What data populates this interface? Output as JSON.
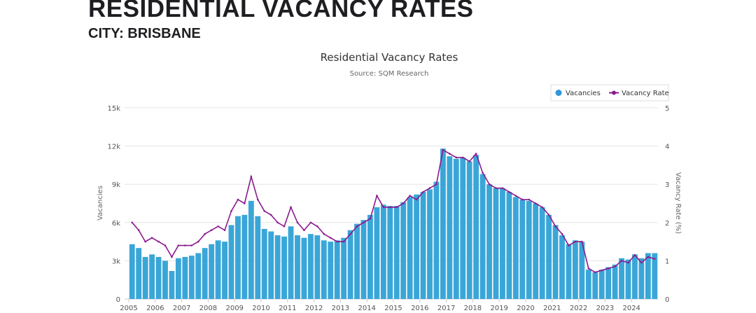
{
  "header": {
    "title": "RESIDENTIAL VACANCY RATES",
    "subtitle": "CITY: BRISBANE"
  },
  "chart_data": {
    "type": "bar+line",
    "title": "Residential Vacancy Rates",
    "subtitle": "Source: SQM Research",
    "xlabel": "",
    "ylabel_left": "Vacancies",
    "ylabel_right": "Vacancy Rate (%)",
    "ylim_left": [
      0,
      15000
    ],
    "ylim_right": [
      0,
      5
    ],
    "yticks_left": [
      "0",
      "3k",
      "6k",
      "9k",
      "12k",
      "15k"
    ],
    "yticks_right": [
      "0",
      "1",
      "2",
      "3",
      "4",
      "5"
    ],
    "xticks": [
      "2005",
      "2006",
      "2007",
      "2008",
      "2009",
      "2010",
      "2011",
      "2012",
      "2013",
      "2014",
      "2015",
      "2016",
      "2017",
      "2018",
      "2019",
      "2020",
      "2021",
      "2022",
      "2023",
      "2024"
    ],
    "grid": true,
    "legend_position": "top-right",
    "colors": {
      "Vacancies": "#3aa6d8",
      "Vacancy Rate": "#8b1a8f"
    },
    "x_start_year": 2005,
    "x_step": "quarter",
    "series": [
      {
        "name": "Vacancies",
        "type": "bar",
        "axis": "left",
        "values": [
          4300,
          4000,
          3300,
          3500,
          3300,
          3000,
          2200,
          3200,
          3300,
          3400,
          3600,
          4000,
          4300,
          4600,
          4500,
          5800,
          6500,
          6600,
          7700,
          6500,
          5500,
          5300,
          5000,
          4900,
          5700,
          5000,
          4800,
          5100,
          5000,
          4600,
          4500,
          4600,
          4800,
          5400,
          5900,
          6200,
          6600,
          7200,
          7400,
          7300,
          7300,
          7600,
          8000,
          8200,
          8400,
          8600,
          9200,
          11800,
          11200,
          11000,
          11100,
          10800,
          11300,
          9800,
          9000,
          8700,
          8700,
          8400,
          8000,
          7800,
          7700,
          7500,
          7200,
          6600,
          5800,
          5000,
          4300,
          4600,
          4500,
          2300,
          2100,
          2300,
          2500,
          2700,
          3200,
          3100,
          3500,
          3200,
          3600,
          3600
        ]
      },
      {
        "name": "Vacancy Rate",
        "type": "line",
        "axis": "right",
        "values": [
          2.0,
          1.8,
          1.5,
          1.6,
          1.5,
          1.4,
          1.1,
          1.4,
          1.4,
          1.4,
          1.5,
          1.7,
          1.8,
          1.9,
          1.8,
          2.3,
          2.6,
          2.5,
          3.2,
          2.6,
          2.3,
          2.2,
          2.0,
          1.9,
          2.4,
          2.0,
          1.8,
          2.0,
          1.9,
          1.7,
          1.6,
          1.5,
          1.5,
          1.7,
          1.9,
          2.0,
          2.1,
          2.7,
          2.4,
          2.4,
          2.4,
          2.5,
          2.7,
          2.6,
          2.8,
          2.9,
          3.0,
          3.9,
          3.8,
          3.7,
          3.7,
          3.6,
          3.8,
          3.3,
          3.0,
          2.9,
          2.9,
          2.8,
          2.7,
          2.6,
          2.6,
          2.5,
          2.4,
          2.2,
          1.9,
          1.7,
          1.4,
          1.5,
          1.5,
          0.8,
          0.7,
          0.75,
          0.8,
          0.85,
          1.0,
          0.95,
          1.15,
          0.95,
          1.1,
          1.05
        ]
      }
    ]
  }
}
